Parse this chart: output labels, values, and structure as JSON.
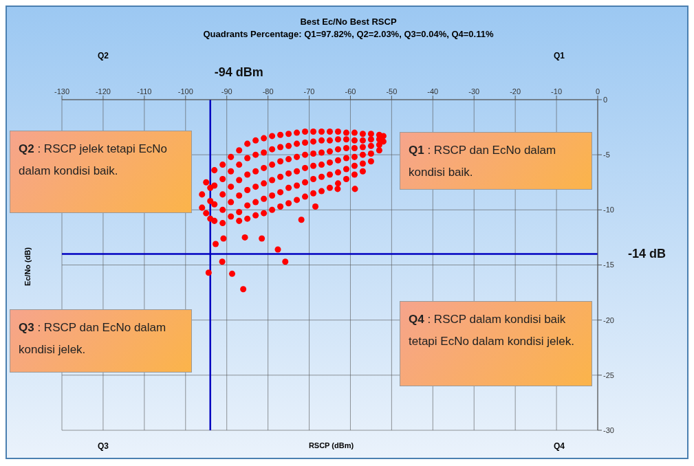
{
  "chart_data": {
    "type": "scatter",
    "title": "Best Ec/No Best RSCP",
    "subtitle": "Quadrants Percentage: Q1=97.82%, Q2=2.03%, Q3=0.04%, Q4=0.11%",
    "xlabel": "RSCP (dBm)",
    "ylabel": "Ec/No (dB)",
    "xlim": [
      -130,
      0
    ],
    "xticks": [
      -130,
      -120,
      -110,
      -100,
      -90,
      -80,
      -70,
      -60,
      -50,
      -40,
      -30,
      -20,
      -10,
      0
    ],
    "ylim": [
      -30,
      0
    ],
    "yticks": [
      0,
      -5,
      -10,
      -15,
      -20,
      -25,
      -30
    ],
    "grid": true,
    "legend": false,
    "marker": "circle",
    "color": "#ff0000",
    "x": [
      -96,
      -96,
      -95,
      -95,
      -94,
      -94,
      -94,
      -93,
      -93,
      -93,
      -93,
      -91,
      -91,
      -91,
      -91,
      -91,
      -89,
      -89,
      -89,
      -89,
      -89,
      -87,
      -87,
      -87,
      -87,
      -87,
      -87,
      -85,
      -85,
      -85,
      -85,
      -85,
      -85,
      -83,
      -83,
      -83,
      -83,
      -83,
      -83,
      -81,
      -81,
      -81,
      -81,
      -81,
      -81,
      -79,
      -79,
      -79,
      -79,
      -79,
      -79,
      -77,
      -77,
      -77,
      -77,
      -77,
      -77,
      -75,
      -75,
      -75,
      -75,
      -75,
      -75,
      -73,
      -73,
      -73,
      -73,
      -73,
      -73,
      -71,
      -71,
      -71,
      -71,
      -71,
      -71,
      -69,
      -69,
      -69,
      -69,
      -69,
      -69,
      -67,
      -67,
      -67,
      -67,
      -67,
      -67,
      -65,
      -65,
      -65,
      -65,
      -65,
      -65,
      -63,
      -63,
      -63,
      -63,
      -63,
      -63,
      -61,
      -61,
      -61,
      -61,
      -61,
      -61,
      -59,
      -59,
      -59,
      -59,
      -59,
      -59,
      -57,
      -57,
      -57,
      -57,
      -57,
      -57,
      -55,
      -55,
      -55,
      -55,
      -55,
      -53,
      -53,
      -53,
      -53,
      -52,
      -52,
      -94.4,
      -88.7,
      -86,
      -91.1,
      -77.6,
      -75.8,
      -71.9,
      -68.5,
      -58.9,
      -92.7,
      -90.8,
      -85.6,
      -81.5,
      -63.1
    ],
    "values": [
      -8.6,
      -9.8,
      -7.5,
      -10.3,
      -8,
      -9.2,
      -10.8,
      -6.4,
      -7.8,
      -9.5,
      -11,
      -5.9,
      -7.2,
      -8.6,
      -10,
      -11.2,
      -5.2,
      -6.5,
      -7.9,
      -9.3,
      -10.6,
      -4.6,
      -5.9,
      -7.3,
      -8.7,
      -10.2,
      -11,
      -4,
      -5.3,
      -6.8,
      -8.2,
      -9.6,
      -10.8,
      -3.7,
      -5,
      -6.5,
      -7.9,
      -9.3,
      -10.5,
      -3.5,
      -4.8,
      -6.2,
      -7.6,
      -9,
      -10.3,
      -3.3,
      -4.5,
      -5.9,
      -7.3,
      -8.7,
      -10,
      -3.2,
      -4.3,
      -5.6,
      -7,
      -8.4,
      -9.7,
      -3.1,
      -4.2,
      -5.4,
      -6.7,
      -8,
      -9.4,
      -3,
      -4,
      -5.2,
      -6.5,
      -7.8,
      -9.1,
      -2.9,
      -3.9,
      -5,
      -6.2,
      -7.5,
      -8.8,
      -2.9,
      -3.8,
      -4.9,
      -6,
      -7.2,
      -8.5,
      -2.9,
      -3.7,
      -4.8,
      -5.9,
      -7,
      -8.3,
      -2.9,
      -3.7,
      -4.7,
      -5.7,
      -6.8,
      -8,
      -2.9,
      -3.6,
      -4.5,
      -5.5,
      -6.6,
      -7.6,
      -3,
      -3.6,
      -4.4,
      -5.3,
      -6.3,
      -7.2,
      -3,
      -3.7,
      -4.4,
      -5.2,
      -6,
      -6.8,
      -3.1,
      -3.7,
      -4.3,
      -5,
      -5.8,
      -6.5,
      -3.1,
      -3.6,
      -4.2,
      -4.9,
      -5.6,
      -3.2,
      -3.6,
      -4.1,
      -4.6,
      -3.3,
      -3.8,
      -15.7,
      -15.8,
      -17.2,
      -14.7,
      -13.6,
      -14.7,
      -10.9,
      -9.7,
      -8.1,
      -13.1,
      -12.6,
      -12.5,
      -12.6,
      -8.1
    ],
    "ref_lines": [
      {
        "axis": "x",
        "value": -94,
        "label": "-94 dBm",
        "color": "#0000c0"
      },
      {
        "axis": "y",
        "value": -14,
        "label": "-14 dB",
        "color": "#0000c0"
      }
    ],
    "annotations": [
      "Q2",
      "Q1",
      "Q3",
      "Q4",
      "Q2 : RSCP jelek tetapi EcNo dalam kondisi baik.",
      "Q1 : RSCP dan EcNo dalam kondisi baik.",
      "Q3 : RSCP dan EcNo dalam kondisi jelek.",
      "Q4 : RSCP dalam kondisi baik tetapi EcNo dalam kondisi jelek."
    ]
  }
}
